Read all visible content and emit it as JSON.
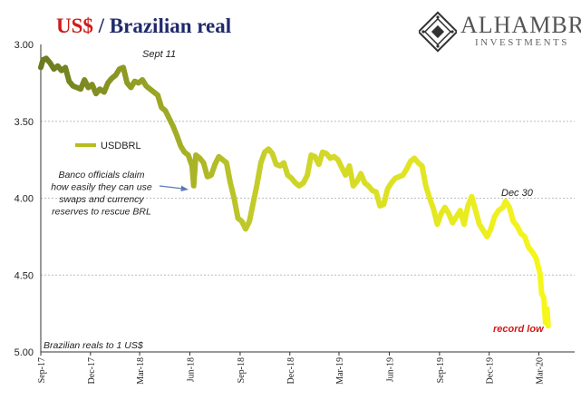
{
  "title": {
    "part1": "US$",
    "separator": " / ",
    "part2": "Brazilian real"
  },
  "logo": {
    "name": "ALHAMBRA",
    "subtitle": "INVESTMENTS"
  },
  "colors": {
    "title_red": "#d11a1a",
    "title_blue": "#1f2a6b",
    "line_start": "#6b7a1f",
    "line_end": "#f7f71c",
    "grid": "#bdbdbd"
  },
  "chart_data": {
    "type": "line",
    "title": "US$ / Brazilian real",
    "ylabel": "Brazilian reals to 1 US$",
    "y_inverted": true,
    "ylim": [
      3.0,
      5.0
    ],
    "yticks": [
      "3.00",
      "3.50",
      "4.00",
      "4.50",
      "5.00"
    ],
    "xlim": [
      "2017-09-01",
      "2020-03-20"
    ],
    "xticks": [
      {
        "date": "2017-09-01",
        "label": "Sep-17"
      },
      {
        "date": "2017-12-01",
        "label": "Dec-17"
      },
      {
        "date": "2018-03-01",
        "label": "Mar-18"
      },
      {
        "date": "2018-06-01",
        "label": "Jun-18"
      },
      {
        "date": "2018-09-01",
        "label": "Sep-18"
      },
      {
        "date": "2018-12-01",
        "label": "Dec-18"
      },
      {
        "date": "2019-03-01",
        "label": "Mar-19"
      },
      {
        "date": "2019-06-01",
        "label": "Jun-19"
      },
      {
        "date": "2019-09-01",
        "label": "Sep-19"
      },
      {
        "date": "2019-12-01",
        "label": "Dec-19"
      },
      {
        "date": "2020-03-01",
        "label": "Mar-20"
      }
    ],
    "grid": true,
    "legend": "upper-left",
    "series": [
      {
        "name": "USDBRL",
        "points": [
          [
            "2017-09-01",
            3.15
          ],
          [
            "2017-09-05",
            3.1
          ],
          [
            "2017-09-11",
            3.09
          ],
          [
            "2017-09-18",
            3.12
          ],
          [
            "2017-09-25",
            3.16
          ],
          [
            "2017-10-02",
            3.14
          ],
          [
            "2017-10-09",
            3.17
          ],
          [
            "2017-10-16",
            3.15
          ],
          [
            "2017-10-23",
            3.24
          ],
          [
            "2017-10-30",
            3.27
          ],
          [
            "2017-11-06",
            3.28
          ],
          [
            "2017-11-13",
            3.29
          ],
          [
            "2017-11-20",
            3.23
          ],
          [
            "2017-11-27",
            3.28
          ],
          [
            "2017-12-04",
            3.26
          ],
          [
            "2017-12-11",
            3.32
          ],
          [
            "2017-12-18",
            3.29
          ],
          [
            "2017-12-26",
            3.31
          ],
          [
            "2018-01-02",
            3.25
          ],
          [
            "2018-01-09",
            3.22
          ],
          [
            "2018-01-16",
            3.2
          ],
          [
            "2018-01-23",
            3.16
          ],
          [
            "2018-01-30",
            3.15
          ],
          [
            "2018-02-06",
            3.25
          ],
          [
            "2018-02-13",
            3.28
          ],
          [
            "2018-02-20",
            3.24
          ],
          [
            "2018-02-27",
            3.25
          ],
          [
            "2018-03-06",
            3.23
          ],
          [
            "2018-03-13",
            3.27
          ],
          [
            "2018-03-20",
            3.29
          ],
          [
            "2018-03-27",
            3.31
          ],
          [
            "2018-04-03",
            3.33
          ],
          [
            "2018-04-10",
            3.41
          ],
          [
            "2018-04-17",
            3.43
          ],
          [
            "2018-04-24",
            3.48
          ],
          [
            "2018-05-01",
            3.53
          ],
          [
            "2018-05-08",
            3.59
          ],
          [
            "2018-05-15",
            3.66
          ],
          [
            "2018-05-22",
            3.7
          ],
          [
            "2018-05-29",
            3.72
          ],
          [
            "2018-06-05",
            3.79
          ],
          [
            "2018-06-08",
            3.92
          ],
          [
            "2018-06-12",
            3.72
          ],
          [
            "2018-06-19",
            3.74
          ],
          [
            "2018-06-26",
            3.77
          ],
          [
            "2018-07-03",
            3.86
          ],
          [
            "2018-07-10",
            3.85
          ],
          [
            "2018-07-17",
            3.78
          ],
          [
            "2018-07-24",
            3.73
          ],
          [
            "2018-07-31",
            3.75
          ],
          [
            "2018-08-07",
            3.77
          ],
          [
            "2018-08-14",
            3.9
          ],
          [
            "2018-08-21",
            4.0
          ],
          [
            "2018-08-28",
            4.13
          ],
          [
            "2018-09-04",
            4.15
          ],
          [
            "2018-09-11",
            4.2
          ],
          [
            "2018-09-18",
            4.15
          ],
          [
            "2018-09-25",
            4.03
          ],
          [
            "2018-10-02",
            3.91
          ],
          [
            "2018-10-09",
            3.77
          ],
          [
            "2018-10-16",
            3.7
          ],
          [
            "2018-10-23",
            3.68
          ],
          [
            "2018-10-30",
            3.71
          ],
          [
            "2018-11-06",
            3.78
          ],
          [
            "2018-11-13",
            3.79
          ],
          [
            "2018-11-20",
            3.77
          ],
          [
            "2018-11-27",
            3.85
          ],
          [
            "2018-12-04",
            3.87
          ],
          [
            "2018-12-11",
            3.9
          ],
          [
            "2018-12-18",
            3.92
          ],
          [
            "2018-12-26",
            3.9
          ],
          [
            "2019-01-02",
            3.85
          ],
          [
            "2019-01-09",
            3.72
          ],
          [
            "2019-01-16",
            3.73
          ],
          [
            "2019-01-23",
            3.78
          ],
          [
            "2019-01-30",
            3.7
          ],
          [
            "2019-02-06",
            3.71
          ],
          [
            "2019-02-13",
            3.74
          ],
          [
            "2019-02-20",
            3.73
          ],
          [
            "2019-02-27",
            3.75
          ],
          [
            "2019-03-06",
            3.8
          ],
          [
            "2019-03-13",
            3.85
          ],
          [
            "2019-03-20",
            3.79
          ],
          [
            "2019-03-27",
            3.92
          ],
          [
            "2019-04-03",
            3.89
          ],
          [
            "2019-04-10",
            3.84
          ],
          [
            "2019-04-17",
            3.9
          ],
          [
            "2019-04-24",
            3.92
          ],
          [
            "2019-05-01",
            3.95
          ],
          [
            "2019-05-08",
            3.96
          ],
          [
            "2019-05-15",
            4.05
          ],
          [
            "2019-05-22",
            4.04
          ],
          [
            "2019-05-29",
            3.94
          ],
          [
            "2019-06-05",
            3.9
          ],
          [
            "2019-06-12",
            3.87
          ],
          [
            "2019-06-19",
            3.86
          ],
          [
            "2019-06-26",
            3.85
          ],
          [
            "2019-07-03",
            3.81
          ],
          [
            "2019-07-10",
            3.76
          ],
          [
            "2019-07-17",
            3.74
          ],
          [
            "2019-07-24",
            3.77
          ],
          [
            "2019-07-31",
            3.79
          ],
          [
            "2019-08-07",
            3.92
          ],
          [
            "2019-08-14",
            4.0
          ],
          [
            "2019-08-21",
            4.07
          ],
          [
            "2019-08-28",
            4.17
          ],
          [
            "2019-09-04",
            4.1
          ],
          [
            "2019-09-11",
            4.06
          ],
          [
            "2019-09-18",
            4.1
          ],
          [
            "2019-09-25",
            4.16
          ],
          [
            "2019-10-02",
            4.12
          ],
          [
            "2019-10-09",
            4.08
          ],
          [
            "2019-10-16",
            4.17
          ],
          [
            "2019-10-23",
            4.05
          ],
          [
            "2019-10-30",
            3.99
          ],
          [
            "2019-11-06",
            4.08
          ],
          [
            "2019-11-13",
            4.17
          ],
          [
            "2019-11-20",
            4.21
          ],
          [
            "2019-11-27",
            4.25
          ],
          [
            "2019-12-04",
            4.2
          ],
          [
            "2019-12-11",
            4.12
          ],
          [
            "2019-12-18",
            4.08
          ],
          [
            "2019-12-26",
            4.06
          ],
          [
            "2019-12-31",
            4.02
          ],
          [
            "2020-01-07",
            4.06
          ],
          [
            "2020-01-14",
            4.15
          ],
          [
            "2020-01-21",
            4.18
          ],
          [
            "2020-01-28",
            4.23
          ],
          [
            "2020-02-04",
            4.25
          ],
          [
            "2020-02-11",
            4.32
          ],
          [
            "2020-02-18",
            4.35
          ],
          [
            "2020-02-25",
            4.39
          ],
          [
            "2020-03-03",
            4.49
          ],
          [
            "2020-03-06",
            4.62
          ],
          [
            "2020-03-10",
            4.65
          ],
          [
            "2020-03-13",
            4.81
          ],
          [
            "2020-03-16",
            4.72
          ],
          [
            "2020-03-18",
            4.83
          ]
        ]
      }
    ],
    "annotations": [
      {
        "id": "sept11",
        "text": "Sept 11",
        "style": "italic",
        "date": "2017-09-11",
        "value": 3.09
      },
      {
        "id": "banco",
        "lines": [
          "Banco officials claim",
          "how easily they can use",
          "swaps and currency",
          "reserves to rescue BRL"
        ],
        "style": "italic"
      },
      {
        "id": "dec30",
        "text": "Dec 30",
        "style": "italic",
        "date": "2019-12-31",
        "value": 4.02
      },
      {
        "id": "recordlow",
        "text": "record low",
        "style": "bold-italic-red",
        "date": "2020-03-18",
        "value": 4.83
      }
    ]
  }
}
